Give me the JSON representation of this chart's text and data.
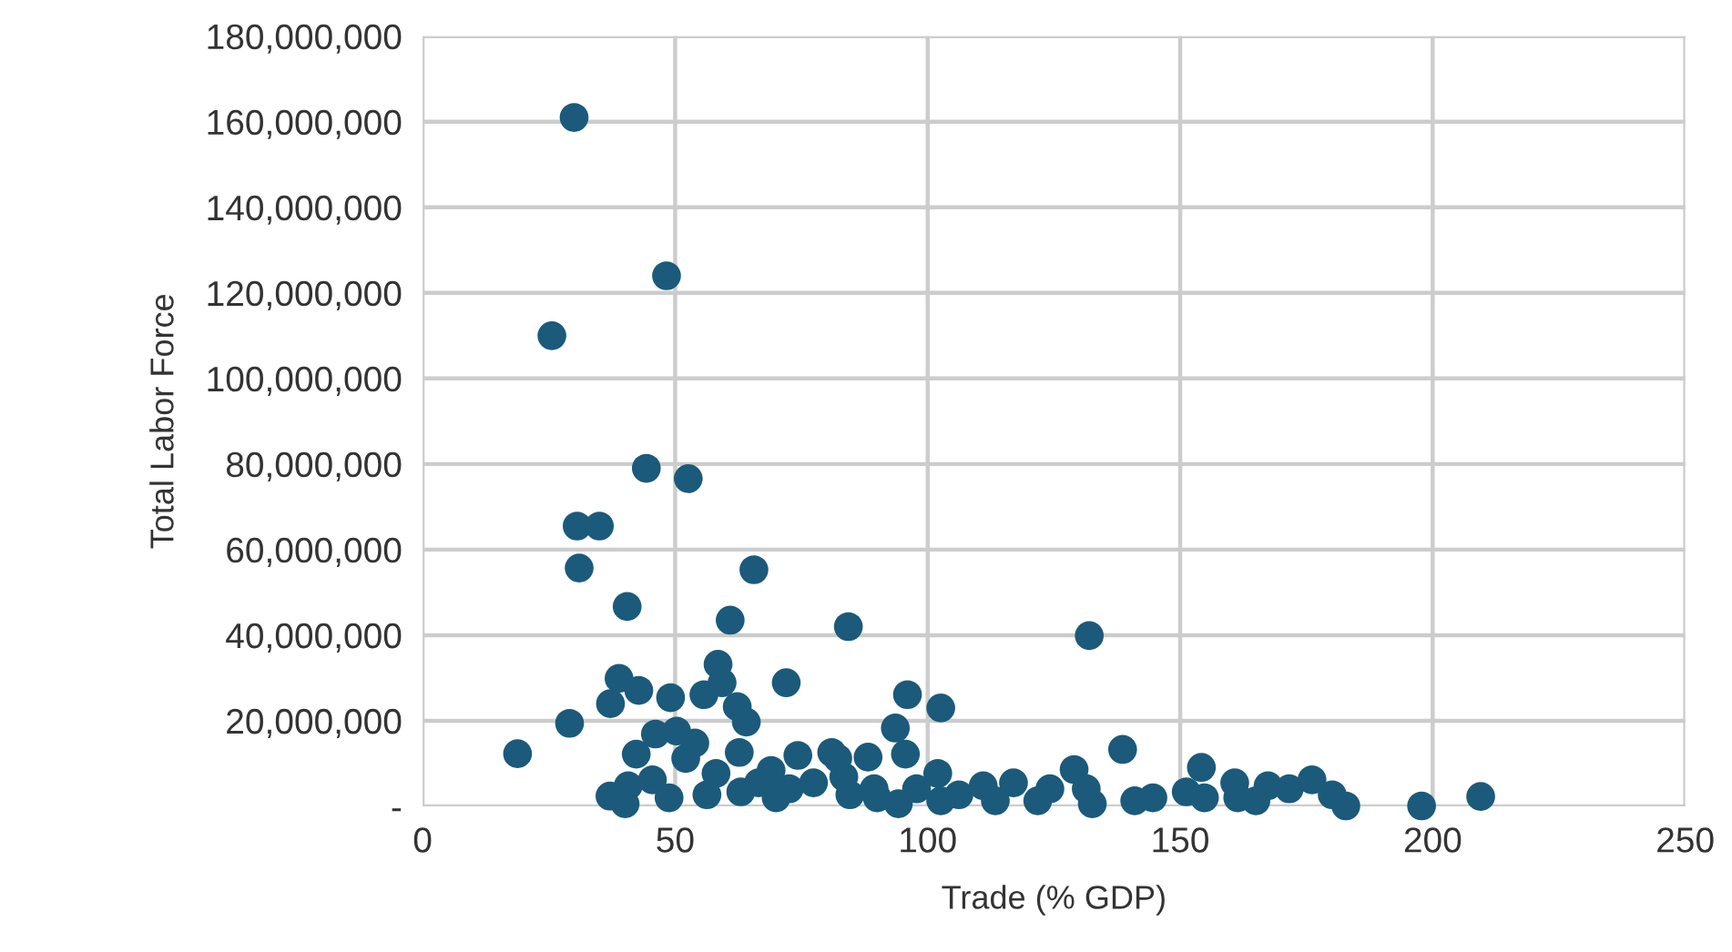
{
  "chart_data": {
    "type": "scatter",
    "xlabel": "Trade (% GDP)",
    "ylabel": "Total Labor Force",
    "series": [
      {
        "color": "#1b5a7a",
        "x": [
          30,
          48.3,
          25.6,
          44.3,
          52.6,
          30.6,
          35,
          31,
          65.6,
          40.5,
          84.3,
          132,
          60.9,
          96,
          102.6,
          72,
          58.5,
          38.9,
          42.8,
          37.2,
          49.1,
          55.7,
          59.3,
          62.3,
          64.1,
          29.1,
          18.8,
          42.3,
          46.1,
          50.3,
          53.9,
          52.1,
          58.1,
          62.7,
          74.3,
          81,
          37.1,
          40.7,
          45.5,
          40.1,
          48.8,
          56.3,
          63,
          69,
          66.5,
          72.6,
          77.4,
          83.4,
          84.6,
          93.6,
          95.6,
          88.2,
          138.6,
          102,
          129,
          154.2,
          160.8,
          167.4,
          151.2,
          154.8,
          141,
          144.6,
          161.4,
          165,
          111,
          117,
          124.2,
          131.4,
          89.4,
          97.8,
          106.2,
          82.2,
          94.2,
          102.6,
          113.4,
          121.8,
          132.6,
          171.6,
          176.1,
          180.1,
          182.8,
          197.8,
          209.5,
          70,
          90
        ],
        "values": [
          161000000,
          124000000,
          110000000,
          79000000,
          76600000,
          65500000,
          65500000,
          55700000,
          55300000,
          46700000,
          42000000,
          39900000,
          43500000,
          26100000,
          23000000,
          28900000,
          33200000,
          29900000,
          27100000,
          24000000,
          25400000,
          26100000,
          28900000,
          23300000,
          19700000,
          19400000,
          12300000,
          12200000,
          16900000,
          17600000,
          14800000,
          11200000,
          7700000,
          12600000,
          11900000,
          12600000,
          2400000,
          4800000,
          6200000,
          600000,
          2000000,
          2700000,
          3400000,
          8400000,
          5500000,
          4100000,
          5500000,
          6900000,
          2700000,
          18300000,
          12200000,
          11500000,
          13300000,
          7700000,
          8600000,
          9100000,
          5500000,
          4800000,
          3400000,
          2000000,
          1300000,
          2000000,
          2000000,
          1300000,
          4800000,
          5500000,
          4100000,
          4100000,
          4100000,
          4100000,
          2700000,
          11200000,
          600000,
          1300000,
          1300000,
          1300000,
          600000,
          4100000,
          6200000,
          2700000,
          100000,
          100000,
          2300000,
          2000000,
          2000000
        ]
      }
    ],
    "xlim": [
      0,
      250
    ],
    "xticks": [
      0,
      50,
      100,
      150,
      200,
      250
    ],
    "ylim": [
      0,
      180000000
    ],
    "yticks": [
      {
        "value": 0,
        "label": "-"
      },
      {
        "value": 20000000,
        "label": "20,000,000"
      },
      {
        "value": 40000000,
        "label": "40,000,000"
      },
      {
        "value": 60000000,
        "label": "60,000,000"
      },
      {
        "value": 80000000,
        "label": "80,000,000"
      },
      {
        "value": 100000000,
        "label": "100,000,000"
      },
      {
        "value": 120000000,
        "label": "120,000,000"
      },
      {
        "value": 140000000,
        "label": "140,000,000"
      },
      {
        "value": 160000000,
        "label": "160,000,000"
      },
      {
        "value": 180000000,
        "label": "180,000,000"
      }
    ],
    "grid": true,
    "marker": "circle"
  }
}
